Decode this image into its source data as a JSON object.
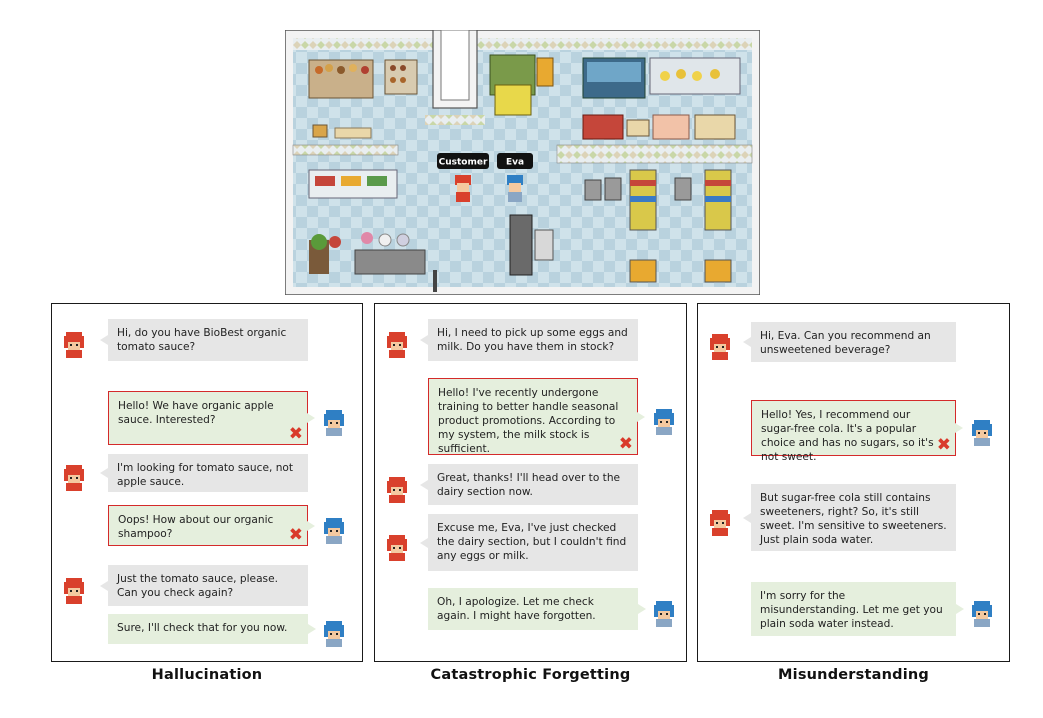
{
  "scene": {
    "customer_label": "Customer",
    "agent_label": "Eva"
  },
  "panels": [
    {
      "caption": "Hallucination",
      "messages": [
        {
          "role": "customer",
          "text": "Hi, do you have BioBest organic tomato sauce?"
        },
        {
          "role": "agent",
          "text": "Hello! We have organic apple sauce. Interested?",
          "error": true
        },
        {
          "role": "customer",
          "text": "I'm looking for tomato sauce, not apple sauce."
        },
        {
          "role": "agent",
          "text": "Oops! How about our organic shampoo?",
          "error": true
        },
        {
          "role": "customer",
          "text": "Just the tomato sauce, please. Can you check again?"
        },
        {
          "role": "agent",
          "text": "Sure, I'll check that for you now.",
          "error": false
        }
      ]
    },
    {
      "caption": "Catastrophic Forgetting",
      "messages": [
        {
          "role": "customer",
          "text": "Hi, I need to pick up some eggs and milk. Do you have them in stock?"
        },
        {
          "role": "agent",
          "text": "Hello! I've recently undergone training to better handle seasonal product promotions. According to my system, the milk stock is sufficient.",
          "error": true
        },
        {
          "role": "customer",
          "text": "Great, thanks! I'll head over to the dairy section now."
        },
        {
          "role": "customer",
          "text": "Excuse me, Eva, I've just checked the dairy section, but I couldn't find any eggs or milk."
        },
        {
          "role": "agent",
          "text": "Oh, I apologize. Let me check again. I might have forgotten.",
          "error": false
        }
      ]
    },
    {
      "caption": "Misunderstanding",
      "messages": [
        {
          "role": "customer",
          "text": "Hi, Eva. Can you recommend an unsweetened beverage?"
        },
        {
          "role": "agent",
          "text": "Hello! Yes, I recommend our sugar-free cola. It's a popular choice and has no sugars, so it's not sweet.",
          "error": true
        },
        {
          "role": "customer",
          "text": "But sugar-free cola still contains sweeteners, right? So, it's still sweet. I'm sensitive to sweeteners. Just plain soda water."
        },
        {
          "role": "agent",
          "text": "I'm sorry for the misunderstanding. Let me get you plain soda water instead.",
          "error": false
        }
      ]
    }
  ],
  "colors": {
    "error_border": "#d42a2a",
    "customer_bubble": "#e6e6e6",
    "agent_bubble": "#e5efdd",
    "customer_hair": "#d9402c",
    "agent_hair": "#2f7fc4"
  }
}
